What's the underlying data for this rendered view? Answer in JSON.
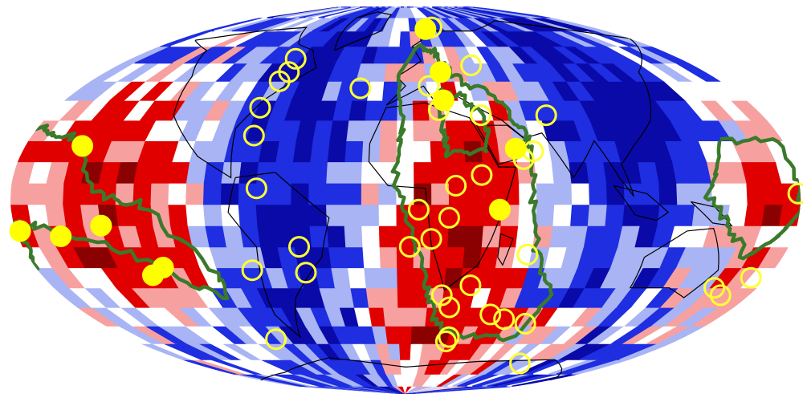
{
  "map": {
    "projection": "mollweide",
    "colors": {
      "background": "#ffffff",
      "deep_red": "#8b0000",
      "red": "#e00000",
      "light_red": "#f7a0a0",
      "white": "#ffffff",
      "light_blue": "#a8b4f4",
      "blue": "#1e2ee0",
      "deep_blue": "#0a0aa8",
      "coastline": "#000000",
      "province_outline": "#3a7a2a",
      "hotspot_fill": "#ffff00",
      "hotspot_ring": "#ffff33"
    },
    "llsvp_provinces": [
      {
        "name": "pacific-llsvp",
        "lon_range": [
          -180,
          -80
        ],
        "lat_range": [
          -35,
          40
        ]
      },
      {
        "name": "african-llsvp",
        "lon_range": [
          -5,
          70
        ],
        "lat_range": [
          -60,
          60
        ]
      },
      {
        "name": "western-pacific-llsvp",
        "lon_range": [
          135,
          180
        ],
        "lat_range": [
          -25,
          25
        ]
      }
    ],
    "hotspots_filled": [
      {
        "lon": 18.5,
        "lat": 71.0
      },
      {
        "lon": 21.0,
        "lat": 50.0
      },
      {
        "lon": 20.0,
        "lat": 38.0
      },
      {
        "lon": 52.0,
        "lat": 19.0
      },
      {
        "lon": 43.0,
        "lat": -4.0
      },
      {
        "lon": -153.0,
        "lat": 20.0
      },
      {
        "lon": -178.0,
        "lat": -12.0
      },
      {
        "lon": -160.0,
        "lat": -14.0
      },
      {
        "lon": -140.0,
        "lat": -10.0
      },
      {
        "lon": -125.0,
        "lat": -29.0
      },
      {
        "lon": -118.0,
        "lat": -26.0
      }
    ],
    "hotspots_open": [
      {
        "lon": 25.0,
        "lat": 72.0
      },
      {
        "lon": 41.0,
        "lat": 53.0
      },
      {
        "lon": -72.0,
        "lat": 56.0
      },
      {
        "lon": -70.0,
        "lat": 50.0
      },
      {
        "lon": -72.0,
        "lat": 46.0
      },
      {
        "lon": -25.0,
        "lat": 43.0
      },
      {
        "lon": -75.0,
        "lat": 35.0
      },
      {
        "lon": -73.0,
        "lat": 24.0
      },
      {
        "lon": 13.0,
        "lat": 44.0
      },
      {
        "lon": 17.0,
        "lat": 34.0
      },
      {
        "lon": 38.0,
        "lat": 32.0
      },
      {
        "lon": 71.0,
        "lat": 32.0
      },
      {
        "lon": 55.0,
        "lat": 15.0
      },
      {
        "lon": 60.0,
        "lat": 18.0
      },
      {
        "lon": 35.0,
        "lat": 9.0
      },
      {
        "lon": 23.0,
        "lat": 5.0
      },
      {
        "lon": -68.0,
        "lat": 4.0
      },
      {
        "lon": 6.0,
        "lat": -4.0
      },
      {
        "lon": 20.0,
        "lat": -7.0
      },
      {
        "lon": 2.0,
        "lat": -18.0
      },
      {
        "lon": 12.0,
        "lat": -15.0
      },
      {
        "lon": 58.0,
        "lat": -21.0
      },
      {
        "lon": -75.0,
        "lat": -27.0
      },
      {
        "lon": -50.0,
        "lat": -18.0
      },
      {
        "lon": -49.0,
        "lat": -28.0
      },
      {
        "lon": 33.0,
        "lat": -33.0
      },
      {
        "lon": 19.0,
        "lat": -37.0
      },
      {
        "lon": 24.0,
        "lat": -42.0
      },
      {
        "lon": 48.0,
        "lat": -45.0
      },
      {
        "lon": 57.0,
        "lat": -47.0
      },
      {
        "lon": 71.0,
        "lat": -49.0
      },
      {
        "lon": 28.0,
        "lat": -55.0
      },
      {
        "lon": 27.0,
        "lat": -57.0
      },
      {
        "lon": 158.0,
        "lat": -34.0
      },
      {
        "lon": 165.0,
        "lat": -37.0
      },
      {
        "lon": 172.0,
        "lat": -30.0
      },
      {
        "lon": 179.0,
        "lat": 2.0
      },
      {
        "lon": -85.0,
        "lat": -56.0
      },
      {
        "lon": 97.0,
        "lat": -68.0
      }
    ]
  }
}
